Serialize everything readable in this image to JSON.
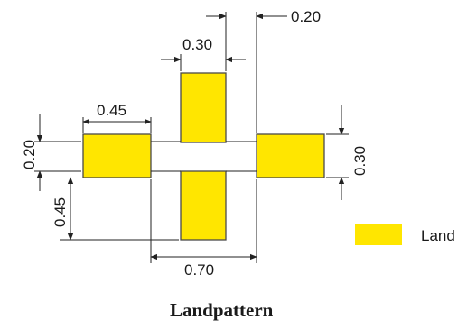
{
  "colors": {
    "land": "#ffe600",
    "line": "#222222",
    "text": "#1a1a1a"
  },
  "dimensions": {
    "top_right_spacing": "0.20",
    "top_pad_width": "0.30",
    "left_pad_length": "0.45",
    "left_pad_height": "0.20",
    "left_offset_height": "0.45",
    "right_pad_height": "0.30",
    "bottom_span": "0.70"
  },
  "legend": {
    "label": "Land",
    "swatch_color": "#ffe600"
  },
  "title": "Landpattern"
}
